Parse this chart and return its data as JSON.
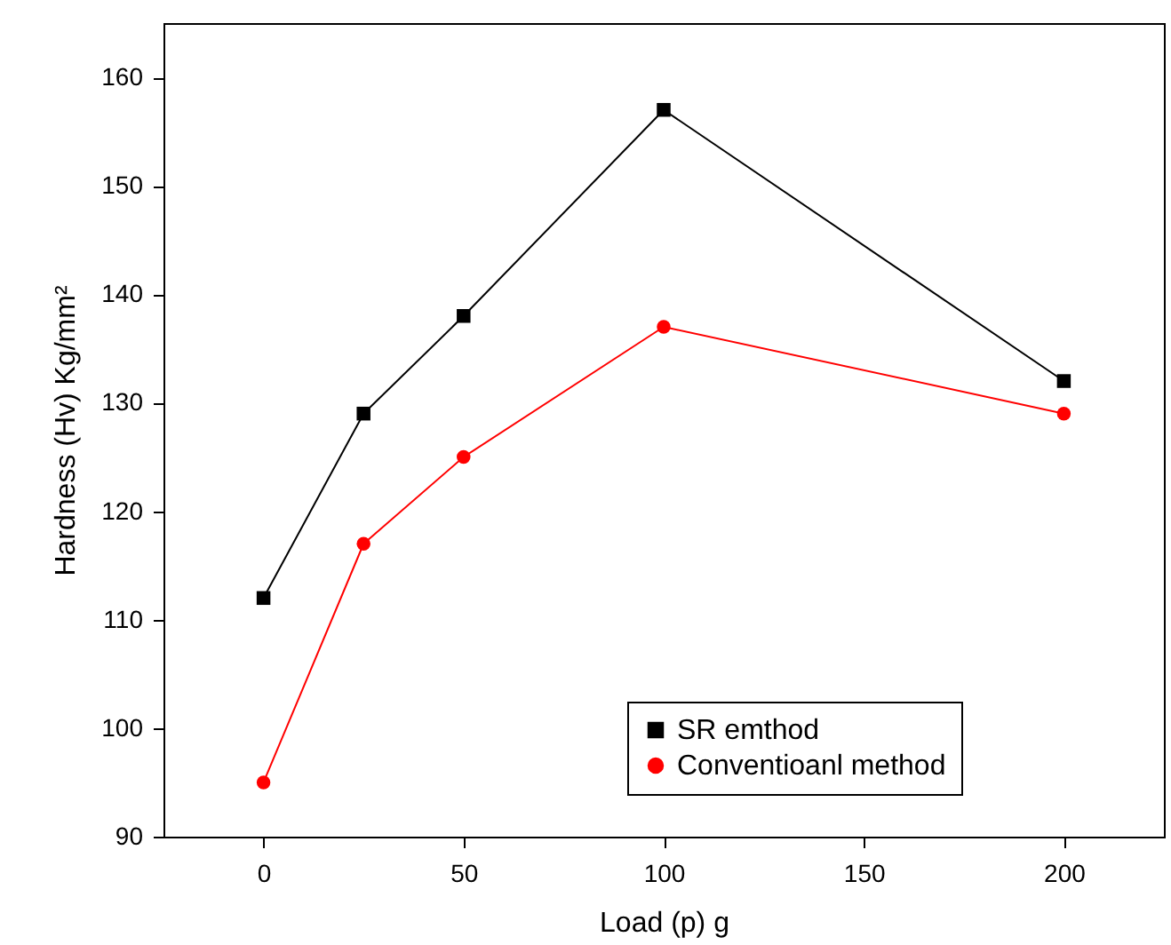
{
  "chart_data": {
    "type": "line",
    "xlabel": "Load (p) g",
    "ylabel": "Hardness (Hv) Kg/mm²",
    "x": [
      0,
      25,
      50,
      100,
      200
    ],
    "series": [
      {
        "name": "SR emthod",
        "color": "#000000",
        "marker": "square",
        "values": [
          112,
          129,
          138,
          157,
          132
        ]
      },
      {
        "name": "Conventioanl method",
        "color": "#ff0000",
        "marker": "circle",
        "values": [
          95,
          117,
          125,
          137,
          129
        ]
      }
    ],
    "xlim": [
      -25,
      225
    ],
    "xticks": [
      0,
      50,
      100,
      150,
      200
    ],
    "ylim": [
      90,
      165
    ],
    "yticks": [
      90,
      100,
      110,
      120,
      130,
      140,
      150,
      160
    ],
    "grid": false,
    "legend": "bottom right",
    "line_style": "solid"
  }
}
